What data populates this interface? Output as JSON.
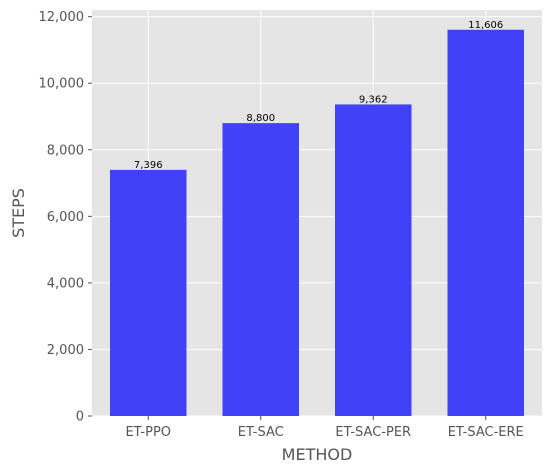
{
  "chart_data": {
    "type": "bar",
    "title": "",
    "xlabel": "METHOD",
    "ylabel": "STEPS",
    "categories": [
      "ET-PPO",
      "ET-SAC",
      "ET-SAC-PER",
      "ET-SAC-ERE"
    ],
    "values": [
      7396,
      8800,
      9362,
      11606
    ],
    "data_labels": [
      "7,396",
      "8,800",
      "9,362",
      "11,606"
    ],
    "ylim": [
      0,
      12200
    ],
    "yticks": [
      0,
      2000,
      4000,
      6000,
      8000,
      10000,
      12000
    ],
    "ytick_labels": [
      "0",
      "2,000",
      "4,000",
      "6,000",
      "8,000",
      "10,000",
      "12,000"
    ],
    "grid": true,
    "colors": {
      "bar": "#4141f8",
      "plot_background": "#e5e5e5",
      "grid": "#ffffff",
      "tick_text": "#555555"
    }
  }
}
